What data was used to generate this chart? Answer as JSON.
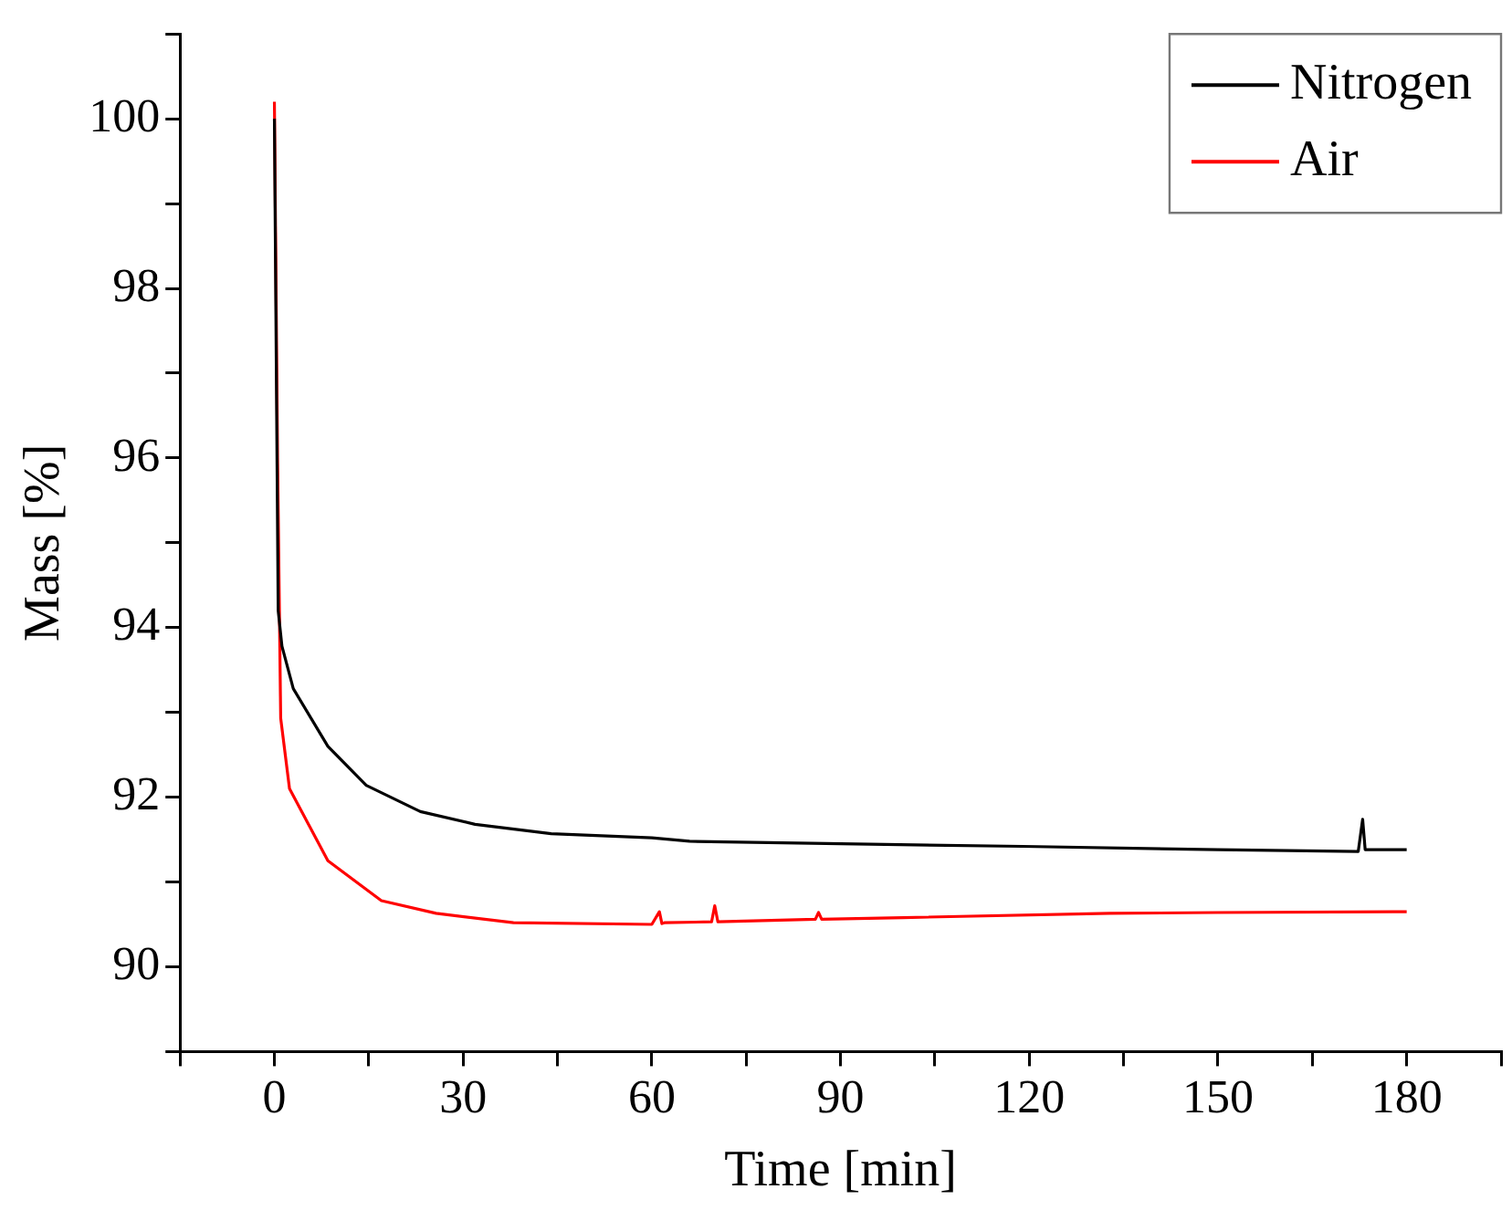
{
  "chart_data": {
    "type": "line",
    "xlabel": "Time [min]",
    "ylabel": "Mass [%]",
    "xlim": [
      -15,
      195
    ],
    "ylim": [
      89,
      101
    ],
    "xticks": [
      {
        "value": -15,
        "label": null
      },
      0,
      {
        "value": 15,
        "label": null
      },
      30,
      {
        "value": 45,
        "label": null
      },
      60,
      {
        "value": 75,
        "label": null
      },
      90,
      {
        "value": 105,
        "label": null
      },
      120,
      {
        "value": 135,
        "label": null
      },
      150,
      {
        "value": 165,
        "label": null
      },
      180,
      {
        "value": 195,
        "label": null
      }
    ],
    "yticks": [
      {
        "value": 89,
        "label": null
      },
      90,
      {
        "value": 91,
        "label": null
      },
      92,
      {
        "value": 93,
        "label": null
      },
      94,
      {
        "value": 95,
        "label": null
      },
      96,
      {
        "value": 97,
        "label": null
      },
      98,
      {
        "value": 99,
        "label": null
      },
      100,
      {
        "value": 101,
        "label": null
      }
    ],
    "grid": false,
    "legend": "top right",
    "marker": "none",
    "line_style": "solid",
    "series": [
      {
        "name": "Nitrogen",
        "color": "#000000",
        "x": [
          0,
          0.6,
          1.2,
          3,
          8.5,
          14.6,
          23.2,
          31.9,
          44,
          60,
          66,
          90,
          119,
          150,
          172.3,
          173,
          173.4,
          180
        ],
        "values": [
          100,
          94.2,
          93.78,
          93.28,
          92.6,
          92.14,
          91.83,
          91.68,
          91.57,
          91.52,
          91.48,
          91.45,
          91.42,
          91.38,
          91.36,
          91.74,
          91.38,
          91.38
        ]
      },
      {
        "name": "Air",
        "color": "#ff0000",
        "x": [
          0,
          0.5,
          1,
          2.4,
          8.5,
          17,
          25.7,
          38,
          60,
          61.2,
          61.6,
          62,
          69.5,
          70,
          70.5,
          86,
          86.5,
          87,
          100,
          132.8,
          150,
          180
        ],
        "values": [
          100.2,
          96,
          92.93,
          92.1,
          91.25,
          90.78,
          90.63,
          90.52,
          90.5,
          90.65,
          90.51,
          90.52,
          90.53,
          90.72,
          90.53,
          90.56,
          90.64,
          90.56,
          90.58,
          90.63,
          90.64,
          90.65
        ]
      }
    ]
  }
}
